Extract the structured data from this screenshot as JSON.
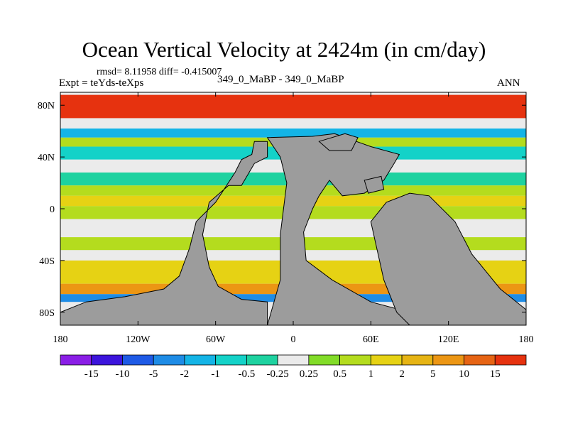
{
  "chart_data": {
    "type": "heatmap",
    "title": "Ocean Vertical Velocity at 2424m (in cm/day)",
    "stats_line": "rmsd= 8.11958 diff= -0.415007",
    "expt_line": "Expt = teYds-teXps",
    "case_line": "349_0_MaBP - 349_0_MaBP",
    "season": "ANN",
    "xlim": [
      -180,
      180
    ],
    "ylim": [
      -90,
      90
    ],
    "x_ticks": [
      {
        "value": -180,
        "label": "180"
      },
      {
        "value": -120,
        "label": "120W"
      },
      {
        "value": -60,
        "label": "60W"
      },
      {
        "value": 0,
        "label": "0"
      },
      {
        "value": 60,
        "label": "60E"
      },
      {
        "value": 120,
        "label": "120E"
      },
      {
        "value": 180,
        "label": "180"
      }
    ],
    "y_ticks": [
      {
        "value": 80,
        "label": "80N"
      },
      {
        "value": 40,
        "label": "40N"
      },
      {
        "value": 0,
        "label": "0"
      },
      {
        "value": -40,
        "label": "40S"
      },
      {
        "value": -80,
        "label": "80S"
      }
    ],
    "colorbar": {
      "colors": [
        "#8a1ee6",
        "#3c14dc",
        "#1e5ae6",
        "#1e8ce6",
        "#14b4e6",
        "#14d2c8",
        "#1ed2a0",
        "#ebebeb",
        "#82dc28",
        "#b4dc1e",
        "#e6d214",
        "#e6b414",
        "#ec9614",
        "#e66414",
        "#e6320f"
      ],
      "labels": [
        "-15",
        "-10",
        "-5",
        "-2",
        "-1",
        "-0.5",
        "-0.25",
        "0.25",
        "0.5",
        "1",
        "2",
        "5",
        "10",
        "15"
      ]
    },
    "land_color": "#9c9c9c",
    "land_regions": [
      {
        "name": "western-continent",
        "polygon": [
          [
            -180,
            -80
          ],
          [
            -180,
            -90
          ],
          [
            -20,
            -90
          ],
          [
            -20,
            -72
          ],
          [
            -40,
            -70
          ],
          [
            -58,
            -60
          ],
          [
            -65,
            -45
          ],
          [
            -70,
            -20
          ],
          [
            -65,
            5
          ],
          [
            -50,
            18
          ],
          [
            -40,
            18
          ],
          [
            -30,
            35
          ],
          [
            -20,
            40
          ],
          [
            -20,
            52
          ],
          [
            -30,
            52
          ],
          [
            -32,
            42
          ],
          [
            -40,
            38
          ],
          [
            -45,
            28
          ],
          [
            -60,
            5
          ],
          [
            -75,
            -10
          ],
          [
            -80,
            -30
          ],
          [
            -88,
            -52
          ],
          [
            -100,
            -62
          ],
          [
            -130,
            -68
          ],
          [
            -160,
            -72
          ]
        ]
      },
      {
        "name": "central-continent",
        "polygon": [
          [
            -20,
            -90
          ],
          [
            90,
            -90
          ],
          [
            90,
            -80
          ],
          [
            60,
            -72
          ],
          [
            30,
            -55
          ],
          [
            10,
            -40
          ],
          [
            8,
            -18
          ],
          [
            15,
            0
          ],
          [
            20,
            10
          ],
          [
            28,
            22
          ],
          [
            38,
            10
          ],
          [
            55,
            12
          ],
          [
            70,
            22
          ],
          [
            78,
            35
          ],
          [
            82,
            42
          ],
          [
            60,
            48
          ],
          [
            32,
            58
          ],
          [
            15,
            56
          ],
          [
            -20,
            55
          ],
          [
            -10,
            40
          ],
          [
            -5,
            20
          ],
          [
            -10,
            -20
          ],
          [
            -10,
            -55
          ]
        ]
      },
      {
        "name": "eastern-continent",
        "polygon": [
          [
            90,
            -90
          ],
          [
            180,
            -90
          ],
          [
            180,
            -78
          ],
          [
            160,
            -62
          ],
          [
            138,
            -35
          ],
          [
            125,
            -10
          ],
          [
            105,
            10
          ],
          [
            90,
            12
          ],
          [
            72,
            5
          ],
          [
            60,
            -10
          ],
          [
            70,
            -55
          ],
          [
            80,
            -80
          ]
        ]
      },
      {
        "name": "north-island",
        "polygon": [
          [
            20,
            52
          ],
          [
            40,
            58
          ],
          [
            50,
            55
          ],
          [
            45,
            45
          ],
          [
            28,
            45
          ]
        ]
      },
      {
        "name": "east-peninsula",
        "polygon": [
          [
            55,
            22
          ],
          [
            68,
            25
          ],
          [
            70,
            15
          ],
          [
            58,
            12
          ]
        ]
      }
    ],
    "ocean_bands": [
      {
        "lat": [
          70,
          88
        ],
        "value": 16
      },
      {
        "lat": [
          62,
          70
        ],
        "value": 0
      },
      {
        "lat": [
          55,
          62
        ],
        "value": -1.5
      },
      {
        "lat": [
          48,
          55
        ],
        "value": 0.6
      },
      {
        "lat": [
          38,
          48
        ],
        "value": -0.7
      },
      {
        "lat": [
          28,
          38
        ],
        "value": 0
      },
      {
        "lat": [
          18,
          28
        ],
        "value": -0.4
      },
      {
        "lat": [
          10,
          18
        ],
        "value": 0.7
      },
      {
        "lat": [
          2,
          10
        ],
        "value": 1.5
      },
      {
        "lat": [
          -8,
          2
        ],
        "value": 0.7
      },
      {
        "lat": [
          -22,
          -8
        ],
        "value": 0
      },
      {
        "lat": [
          -32,
          -22
        ],
        "value": 0.7
      },
      {
        "lat": [
          -40,
          -32
        ],
        "value": 0
      },
      {
        "lat": [
          -58,
          -40
        ],
        "value": 1.5
      },
      {
        "lat": [
          -66,
          -58
        ],
        "value": 7
      },
      {
        "lat": [
          -72,
          -66
        ],
        "value": -3
      }
    ]
  }
}
